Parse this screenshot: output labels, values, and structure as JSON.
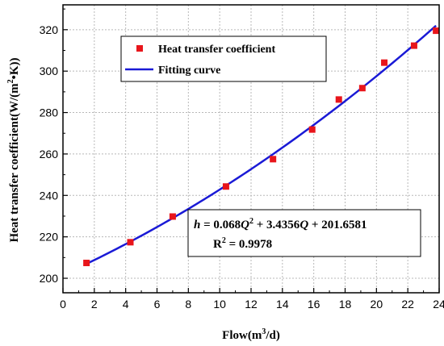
{
  "chart_data": {
    "type": "scatter",
    "title": "",
    "xlabel_main": "Flow(m",
    "xlabel_sup": "3",
    "xlabel_end": "/d)",
    "ylabel_main": "Heat transfer coefficient(W/(m",
    "ylabel_sup": "2",
    "ylabel_end": "•K))",
    "xlim": [
      0,
      24
    ],
    "ylim": [
      193,
      332
    ],
    "xticks": [
      0,
      2,
      4,
      6,
      8,
      10,
      12,
      14,
      16,
      18,
      20,
      22,
      24
    ],
    "yticks": [
      200,
      220,
      240,
      260,
      280,
      300,
      320
    ],
    "grid": true,
    "legend_position": "top-left",
    "series": [
      {
        "name": "Heat transfer coefficient",
        "kind": "scatter",
        "color": "#e8151b",
        "marker": "square",
        "x": [
          1.5,
          4.3,
          7.0,
          10.4,
          13.4,
          15.9,
          17.6,
          19.1,
          20.5,
          22.4,
          23.8
        ],
        "y": [
          207.4,
          217.4,
          229.8,
          244.3,
          257.5,
          271.8,
          286.3,
          291.8,
          304.1,
          312.3,
          319.5
        ]
      },
      {
        "name": "Fitting curve",
        "kind": "line",
        "color": "#1a1ad6",
        "x_range": [
          1.5,
          23.8
        ],
        "coefficients": {
          "a": 0.068,
          "b": 3.4356,
          "c": 201.6581
        }
      }
    ],
    "annotation": {
      "eq_h": "h",
      "eq_part1": " = 0.068",
      "eq_q1": "Q",
      "eq_sup": "2",
      "eq_part2": " + 3.4356",
      "eq_q2": "Q",
      "eq_part3": " + 201.6581",
      "r2_label": "R",
      "r2_sup": "2",
      "r2_value": " = 0.9978"
    }
  }
}
